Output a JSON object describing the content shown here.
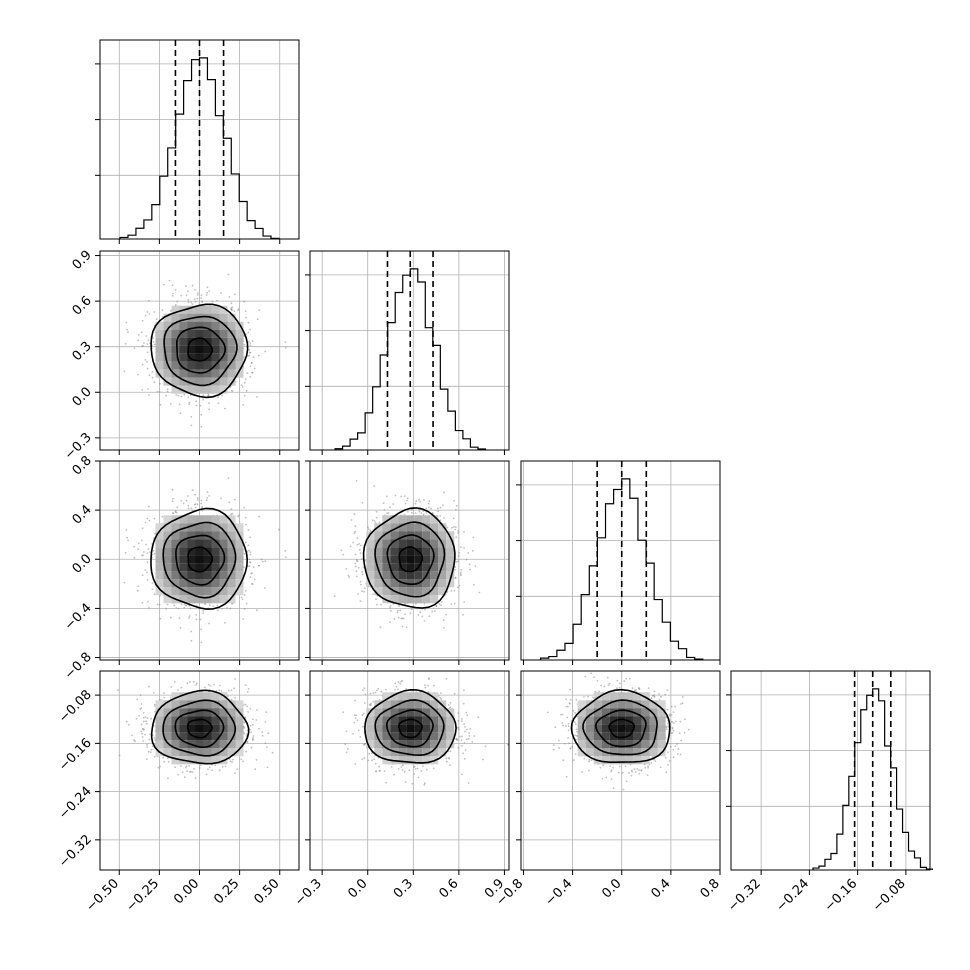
{
  "chart_data": {
    "type": "corner",
    "parameters": 4,
    "grid": true,
    "axes": [
      {
        "range": [
          -0.62,
          0.62
        ],
        "mean": 0.0,
        "sigma": 0.15,
        "q16": -0.15,
        "q50": 0.0,
        "q84": 0.15,
        "ticks": [
          -0.5,
          -0.25,
          0.0,
          0.25,
          0.5
        ],
        "tick_labels": [
          "−0.50",
          "−0.25",
          "0.00",
          "0.25",
          "0.50"
        ]
      },
      {
        "range": [
          -0.38,
          0.93
        ],
        "mean": 0.28,
        "sigma": 0.15,
        "q16": 0.13,
        "q50": 0.28,
        "q84": 0.43,
        "ticks": [
          -0.3,
          0.0,
          0.3,
          0.6,
          0.9
        ],
        "tick_labels": [
          "−0.3",
          "0.0",
          "0.3",
          "0.6",
          "0.9"
        ]
      },
      {
        "range": [
          -0.82,
          0.8
        ],
        "mean": 0.0,
        "sigma": 0.2,
        "q16": -0.2,
        "q50": 0.0,
        "q84": 0.2,
        "ticks": [
          -0.8,
          -0.4,
          0.0,
          0.4,
          0.8
        ],
        "tick_labels": [
          "−0.8",
          "−0.4",
          "0.0",
          "0.4",
          "0.8"
        ]
      },
      {
        "range": [
          -0.37,
          -0.04
        ],
        "mean": -0.135,
        "sigma": 0.03,
        "q16": -0.165,
        "q50": -0.135,
        "q84": -0.105,
        "ticks": [
          -0.32,
          -0.24,
          -0.16,
          -0.08
        ],
        "tick_labels": [
          "−0.32",
          "−0.24",
          "−0.16",
          "−0.08"
        ]
      }
    ]
  }
}
